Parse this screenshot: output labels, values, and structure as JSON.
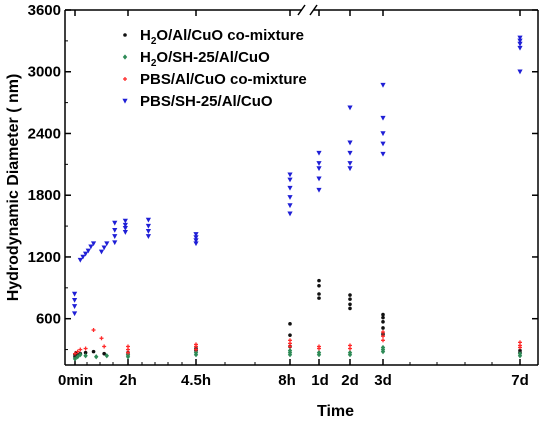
{
  "chart_data": {
    "type": "scatter",
    "xlabel": "Time",
    "ylabel": "Hydrodynamic Diameter ( nm)",
    "ylim": [
      150,
      3600
    ],
    "y_ticks": [
      600,
      1200,
      1800,
      2400,
      3000,
      3600
    ],
    "axis_break": "top-axis between 8h and 1d",
    "grid": false,
    "legend_position": "top-center",
    "x_categories": [
      "0min",
      "2h",
      "4.5h",
      "8h",
      "1d",
      "2d",
      "3d",
      "7d"
    ],
    "series": [
      {
        "name_parts": [
          "H",
          "2",
          "O/Al/CuO co-mixture"
        ],
        "marker": "dot",
        "color": "#111111",
        "points": [
          [
            0.0,
            230
          ],
          [
            0.0,
            250
          ],
          [
            0.02,
            270
          ],
          [
            0.04,
            250
          ],
          [
            0.1,
            260
          ],
          [
            0.2,
            270
          ],
          [
            0.35,
            280
          ],
          [
            0.55,
            260
          ],
          [
            1.0,
            250
          ],
          [
            1.0,
            270
          ],
          [
            2.5,
            290
          ],
          [
            2.5,
            310
          ],
          [
            4.4,
            330
          ],
          [
            4.4,
            440
          ],
          [
            4.4,
            550
          ],
          [
            5.0,
            800
          ],
          [
            5.0,
            840
          ],
          [
            5.0,
            920
          ],
          [
            5.0,
            970
          ],
          [
            6.0,
            700
          ],
          [
            6.0,
            740
          ],
          [
            6.0,
            790
          ],
          [
            6.0,
            830
          ],
          [
            7.0,
            450
          ],
          [
            7.0,
            510
          ],
          [
            7.0,
            570
          ],
          [
            7.0,
            610
          ],
          [
            7.0,
            640
          ],
          [
            10.0,
            270
          ],
          [
            10.0,
            290
          ]
        ]
      },
      {
        "name_parts": [
          "H",
          "2",
          "O/SH-25/Al/CuO"
        ],
        "marker": "diamond",
        "color": "#2e8b57",
        "points": [
          [
            0.0,
            210
          ],
          [
            0.05,
            230
          ],
          [
            0.1,
            250
          ],
          [
            0.2,
            240
          ],
          [
            0.4,
            230
          ],
          [
            0.6,
            240
          ],
          [
            1.0,
            230
          ],
          [
            1.0,
            250
          ],
          [
            2.5,
            250
          ],
          [
            2.5,
            270
          ],
          [
            4.4,
            250
          ],
          [
            4.4,
            270
          ],
          [
            4.4,
            290
          ],
          [
            5.0,
            250
          ],
          [
            5.0,
            270
          ],
          [
            6.0,
            250
          ],
          [
            6.0,
            270
          ],
          [
            7.0,
            280
          ],
          [
            7.0,
            300
          ],
          [
            7.0,
            320
          ],
          [
            10.0,
            240
          ],
          [
            10.0,
            260
          ]
        ]
      },
      {
        "name_parts": [
          "PBS/Al/CuO co-mixture"
        ],
        "marker": "plus",
        "color": "#ff2a2a",
        "points": [
          [
            0.0,
            260
          ],
          [
            0.05,
            280
          ],
          [
            0.1,
            300
          ],
          [
            0.2,
            310
          ],
          [
            0.35,
            490
          ],
          [
            0.5,
            410
          ],
          [
            0.55,
            330
          ],
          [
            1.0,
            270
          ],
          [
            1.0,
            300
          ],
          [
            1.0,
            330
          ],
          [
            2.5,
            300
          ],
          [
            2.5,
            330
          ],
          [
            2.5,
            350
          ],
          [
            4.4,
            330
          ],
          [
            4.4,
            360
          ],
          [
            4.4,
            390
          ],
          [
            5.0,
            310
          ],
          [
            5.0,
            330
          ],
          [
            6.0,
            310
          ],
          [
            6.0,
            340
          ],
          [
            7.0,
            390
          ],
          [
            7.0,
            430
          ],
          [
            7.0,
            470
          ],
          [
            10.0,
            320
          ],
          [
            10.0,
            340
          ],
          [
            10.0,
            370
          ]
        ]
      },
      {
        "name_parts": [
          "PBS/SH-25/Al/CuO"
        ],
        "marker": "triangle-down",
        "color": "#1f1fd6",
        "points": [
          [
            -0.05,
            650
          ],
          [
            -0.05,
            720
          ],
          [
            -0.05,
            780
          ],
          [
            -0.05,
            840
          ],
          [
            0.1,
            1170
          ],
          [
            0.15,
            1200
          ],
          [
            0.2,
            1230
          ],
          [
            0.25,
            1260
          ],
          [
            0.3,
            1300
          ],
          [
            0.35,
            1330
          ],
          [
            0.5,
            1250
          ],
          [
            0.55,
            1290
          ],
          [
            0.6,
            1330
          ],
          [
            0.75,
            1340
          ],
          [
            0.75,
            1400
          ],
          [
            0.75,
            1460
          ],
          [
            0.75,
            1530
          ],
          [
            0.95,
            1440
          ],
          [
            0.95,
            1480
          ],
          [
            0.95,
            1510
          ],
          [
            0.95,
            1550
          ],
          [
            1.45,
            1400
          ],
          [
            1.45,
            1450
          ],
          [
            1.45,
            1500
          ],
          [
            1.45,
            1560
          ],
          [
            2.5,
            1330
          ],
          [
            2.5,
            1360
          ],
          [
            2.5,
            1390
          ],
          [
            2.5,
            1420
          ],
          [
            4.4,
            1620
          ],
          [
            4.4,
            1700
          ],
          [
            4.4,
            1780
          ],
          [
            4.4,
            1870
          ],
          [
            4.4,
            1950
          ],
          [
            4.4,
            2000
          ],
          [
            5.0,
            1850
          ],
          [
            5.0,
            1960
          ],
          [
            5.0,
            2060
          ],
          [
            5.0,
            2110
          ],
          [
            5.0,
            2210
          ],
          [
            6.0,
            2060
          ],
          [
            6.0,
            2110
          ],
          [
            6.0,
            2210
          ],
          [
            6.0,
            2310
          ],
          [
            6.0,
            2650
          ],
          [
            7.0,
            2200
          ],
          [
            7.0,
            2300
          ],
          [
            7.0,
            2400
          ],
          [
            7.0,
            2550
          ],
          [
            7.0,
            2870
          ],
          [
            10.0,
            3000
          ],
          [
            10.0,
            3230
          ],
          [
            10.0,
            3270
          ],
          [
            10.0,
            3300
          ],
          [
            10.0,
            3330
          ]
        ]
      }
    ]
  }
}
